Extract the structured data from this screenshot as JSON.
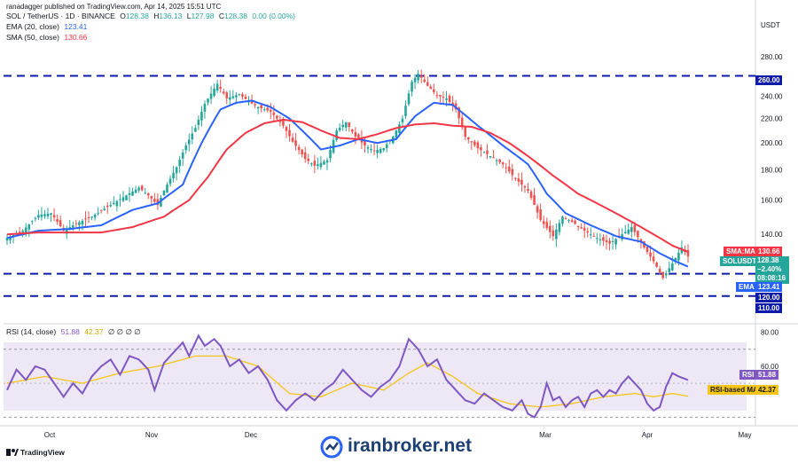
{
  "header": {
    "published": "ranadagger published on TradingView.com, Apr 14, 2025 15:51 UTC",
    "symbol": "SOL / TetherUS · 1D · BINANCE",
    "ohlc": {
      "o_label": "O",
      "o": "128.38",
      "h_label": "H",
      "h": "136.13",
      "l_label": "L",
      "l": "127.98",
      "c_label": "C",
      "c": "128.38",
      "change": "0.00 (0.00%)"
    },
    "ema_label": "EMA (20, close)",
    "ema_value": "123.41",
    "sma_label": "SMA (50, close)",
    "sma_value": "130.66",
    "rsi_label": "RSI (14, close)",
    "rsi_value": "51.88",
    "rsi_ma_value": "42.37",
    "rsi_extra": "∅ ∅ ∅ ∅"
  },
  "axis": {
    "currency": "USDT"
  },
  "tags": {
    "level_260": "260.00",
    "sma_tag_label": "SMA:MA",
    "sma_tag_value": "130.66",
    "symbol_tag": "SOLUSDT",
    "symbol_price": "128.38",
    "symbol_change": "−2.40%",
    "symbol_countdown": "08:08:16",
    "ema_tag_label": "EMA",
    "ema_tag_value": "123.41",
    "level_120": "120.00",
    "level_110": "110.00",
    "rsi_tag_label": "RSI",
    "rsi_tag_value": "51.88",
    "rsi_ma_tag_label": "RSI-based MA",
    "rsi_ma_tag_value": "42.37"
  },
  "watermark": "iranbroker.net",
  "footer_logo": "TradingView",
  "colors": {
    "up": "#26a69a",
    "down": "#ef5350",
    "ema": "#2962ff",
    "sma": "#f23645",
    "levels": "#0d1ba8",
    "rsi": "#7e57c2",
    "rsi_ma": "#f5c518",
    "rsi_band": "#ede7f6"
  },
  "chart_data": [
    {
      "type": "candlestick",
      "title": "SOL / TetherUS · 1D · BINANCE",
      "ylabel": "USDT",
      "scale": "log",
      "ylim": [
        104,
        296
      ],
      "yticks": [
        280,
        240,
        220,
        200,
        180,
        160,
        140
      ],
      "xticks": [
        "Oct",
        "Nov",
        "Dec",
        "Mar",
        "Apr",
        "May"
      ],
      "horizontal_levels": [
        260,
        120,
        110
      ],
      "close_anchors": [
        [
          0,
          138
        ],
        [
          5,
          142
        ],
        [
          10,
          151
        ],
        [
          14,
          152
        ],
        [
          18,
          142
        ],
        [
          22,
          146
        ],
        [
          27,
          150
        ],
        [
          33,
          157
        ],
        [
          38,
          163
        ],
        [
          42,
          168
        ],
        [
          45,
          163
        ],
        [
          48,
          157
        ],
        [
          50,
          166
        ],
        [
          54,
          182
        ],
        [
          57,
          198
        ],
        [
          60,
          212
        ],
        [
          63,
          233
        ],
        [
          67,
          252
        ],
        [
          70,
          238
        ],
        [
          74,
          242
        ],
        [
          77,
          235
        ],
        [
          80,
          230
        ],
        [
          84,
          226
        ],
        [
          88,
          214
        ],
        [
          91,
          201
        ],
        [
          95,
          188
        ],
        [
          98,
          183
        ],
        [
          102,
          187
        ],
        [
          105,
          210
        ],
        [
          108,
          217
        ],
        [
          111,
          205
        ],
        [
          114,
          198
        ],
        [
          117,
          194
        ],
        [
          120,
          196
        ],
        [
          123,
          205
        ],
        [
          126,
          220
        ],
        [
          129,
          254
        ],
        [
          131,
          262
        ],
        [
          134,
          250
        ],
        [
          137,
          241
        ],
        [
          140,
          238
        ],
        [
          143,
          228
        ],
        [
          146,
          205
        ],
        [
          150,
          196
        ],
        [
          154,
          190
        ],
        [
          158,
          184
        ],
        [
          162,
          174
        ],
        [
          166,
          166
        ],
        [
          170,
          148
        ],
        [
          174,
          139
        ],
        [
          177,
          150
        ],
        [
          180,
          147
        ],
        [
          184,
          142
        ],
        [
          188,
          138
        ],
        [
          192,
          135
        ],
        [
          196,
          140
        ],
        [
          199,
          144
        ],
        [
          203,
          133
        ],
        [
          206,
          126
        ],
        [
          209,
          118
        ],
        [
          212,
          125
        ],
        [
          215,
          133
        ],
        [
          217,
          128.38
        ]
      ],
      "series": [
        {
          "name": "EMA (20, close)",
          "last": 123.41,
          "anchors": [
            [
              0,
              138
            ],
            [
              10,
              142
            ],
            [
              20,
              143
            ],
            [
              30,
              145
            ],
            [
              40,
              154
            ],
            [
              48,
              158
            ],
            [
              56,
              170
            ],
            [
              62,
              200
            ],
            [
              68,
              228
            ],
            [
              73,
              234
            ],
            [
              78,
              236
            ],
            [
              84,
              230
            ],
            [
              90,
              220
            ],
            [
              96,
              205
            ],
            [
              100,
              195
            ],
            [
              106,
              198
            ],
            [
              112,
              203
            ],
            [
              118,
              200
            ],
            [
              124,
              203
            ],
            [
              130,
              222
            ],
            [
              136,
              234
            ],
            [
              142,
              232
            ],
            [
              150,
              214
            ],
            [
              158,
              198
            ],
            [
              166,
              184
            ],
            [
              172,
              164
            ],
            [
              178,
              152
            ],
            [
              186,
              145
            ],
            [
              194,
              139
            ],
            [
              202,
              136
            ],
            [
              208,
              130
            ],
            [
              213,
              126
            ],
            [
              217,
              123.41
            ]
          ]
        },
        {
          "name": "SMA (50, close)",
          "last": 130.66,
          "anchors": [
            [
              0,
              140
            ],
            [
              10,
              141
            ],
            [
              20,
              141
            ],
            [
              30,
              141
            ],
            [
              40,
              144
            ],
            [
              50,
              150
            ],
            [
              58,
              160
            ],
            [
              64,
              175
            ],
            [
              70,
              195
            ],
            [
              76,
              208
            ],
            [
              82,
              216
            ],
            [
              88,
              219
            ],
            [
              94,
              217
            ],
            [
              100,
              210
            ],
            [
              106,
              204
            ],
            [
              112,
              203
            ],
            [
              118,
              207
            ],
            [
              124,
              212
            ],
            [
              130,
              215
            ],
            [
              136,
              216
            ],
            [
              142,
              214
            ],
            [
              148,
              213
            ],
            [
              154,
              208
            ],
            [
              160,
              200
            ],
            [
              166,
              190
            ],
            [
              174,
              176
            ],
            [
              182,
              164
            ],
            [
              190,
              156
            ],
            [
              198,
              148
            ],
            [
              206,
              140
            ],
            [
              212,
              134
            ],
            [
              217,
              130.66
            ]
          ]
        }
      ]
    },
    {
      "type": "line",
      "title": "RSI (14, close)",
      "ylim": [
        25,
        85
      ],
      "yticks": [
        80,
        60
      ],
      "bands": [
        70,
        30
      ],
      "midline": 50,
      "series": [
        {
          "name": "RSI (14, close)",
          "last": 51.88,
          "anchors": [
            [
              0,
              46
            ],
            [
              3,
              58
            ],
            [
              6,
              52
            ],
            [
              9,
              60
            ],
            [
              12,
              58
            ],
            [
              15,
              50
            ],
            [
              18,
              42
            ],
            [
              21,
              50
            ],
            [
              24,
              44
            ],
            [
              27,
              54
            ],
            [
              30,
              60
            ],
            [
              33,
              64
            ],
            [
              36,
              55
            ],
            [
              39,
              66
            ],
            [
              42,
              64
            ],
            [
              45,
              58
            ],
            [
              47,
              46
            ],
            [
              50,
              62
            ],
            [
              53,
              68
            ],
            [
              56,
              74
            ],
            [
              58,
              66
            ],
            [
              61,
              78
            ],
            [
              63,
              72
            ],
            [
              66,
              76
            ],
            [
              68,
              72
            ],
            [
              71,
              60
            ],
            [
              74,
              64
            ],
            [
              77,
              56
            ],
            [
              80,
              60
            ],
            [
              83,
              52
            ],
            [
              86,
              40
            ],
            [
              89,
              34
            ],
            [
              92,
              40
            ],
            [
              95,
              44
            ],
            [
              98,
              40
            ],
            [
              101,
              46
            ],
            [
              104,
              50
            ],
            [
              107,
              58
            ],
            [
              110,
              52
            ],
            [
              113,
              46
            ],
            [
              116,
              42
            ],
            [
              119,
              48
            ],
            [
              122,
              52
            ],
            [
              125,
              60
            ],
            [
              128,
              76
            ],
            [
              131,
              70
            ],
            [
              134,
              60
            ],
            [
              137,
              64
            ],
            [
              140,
              52
            ],
            [
              143,
              46
            ],
            [
              146,
              40
            ],
            [
              149,
              38
            ],
            [
              152,
              44
            ],
            [
              155,
              40
            ],
            [
              158,
              36
            ],
            [
              161,
              34
            ],
            [
              164,
              40
            ],
            [
              166,
              32
            ],
            [
              168,
              30
            ],
            [
              170,
              36
            ],
            [
              172,
              50
            ],
            [
              174,
              40
            ],
            [
              176,
              42
            ],
            [
              178,
              36
            ],
            [
              180,
              40
            ],
            [
              182,
              42
            ],
            [
              184,
              36
            ],
            [
              186,
              44
            ],
            [
              188,
              46
            ],
            [
              190,
              42
            ],
            [
              192,
              46
            ],
            [
              194,
              44
            ],
            [
              196,
              50
            ],
            [
              198,
              54
            ],
            [
              200,
              50
            ],
            [
              202,
              46
            ],
            [
              204,
              38
            ],
            [
              206,
              34
            ],
            [
              208,
              36
            ],
            [
              210,
              48
            ],
            [
              212,
              56
            ],
            [
              214,
              54
            ],
            [
              217,
              51.88
            ]
          ]
        },
        {
          "name": "RSI-based MA",
          "last": 42.37,
          "anchors": [
            [
              0,
              50
            ],
            [
              12,
              54
            ],
            [
              24,
              50
            ],
            [
              36,
              56
            ],
            [
              48,
              60
            ],
            [
              60,
              66
            ],
            [
              70,
              66
            ],
            [
              80,
              60
            ],
            [
              90,
              44
            ],
            [
              100,
              42
            ],
            [
              110,
              50
            ],
            [
              120,
              46
            ],
            [
              128,
              56
            ],
            [
              134,
              62
            ],
            [
              142,
              54
            ],
            [
              150,
              44
            ],
            [
              160,
              38
            ],
            [
              170,
              36
            ],
            [
              180,
              38
            ],
            [
              190,
              42
            ],
            [
              200,
              44
            ],
            [
              206,
              42
            ],
            [
              212,
              44
            ],
            [
              217,
              42.37
            ]
          ]
        }
      ]
    }
  ]
}
